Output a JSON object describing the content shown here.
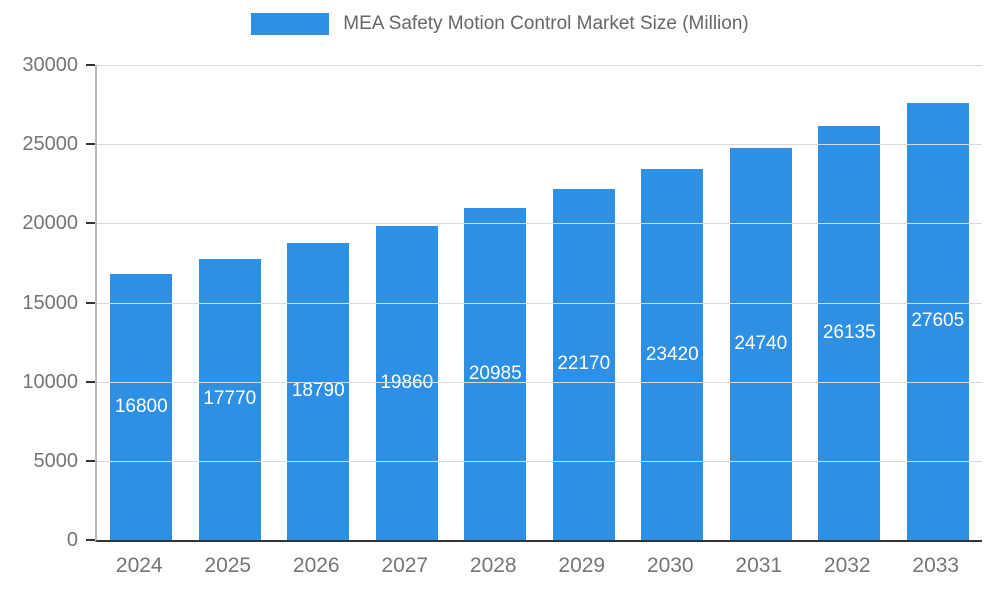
{
  "chart_data": {
    "type": "bar",
    "title": "MEA Safety Motion Control Market Size (Million)",
    "categories": [
      "2024",
      "2025",
      "2026",
      "2027",
      "2028",
      "2029",
      "2030",
      "2031",
      "2032",
      "2033"
    ],
    "values": [
      16800,
      17770,
      18790,
      19860,
      20985,
      22170,
      23420,
      24740,
      26135,
      27605
    ],
    "xlabel": "",
    "ylabel": "",
    "ylim": [
      0,
      30000
    ],
    "ytick_step": 5000,
    "yticks": [
      "0",
      "5000",
      "10000",
      "15000",
      "20000",
      "25000",
      "30000"
    ],
    "grid": true,
    "legend_position": "top",
    "data_labels": "inside-center-white",
    "colors": {
      "bar": "#2E90E5",
      "grid": "#d9d9d9",
      "axis_text": "#757575",
      "legend_text": "#666666",
      "x_axis_line": "#333333",
      "y_axis_line": "#b8b8b8",
      "tick": "#333333",
      "label_text": "#ffffff",
      "background": "#ffffff"
    }
  }
}
